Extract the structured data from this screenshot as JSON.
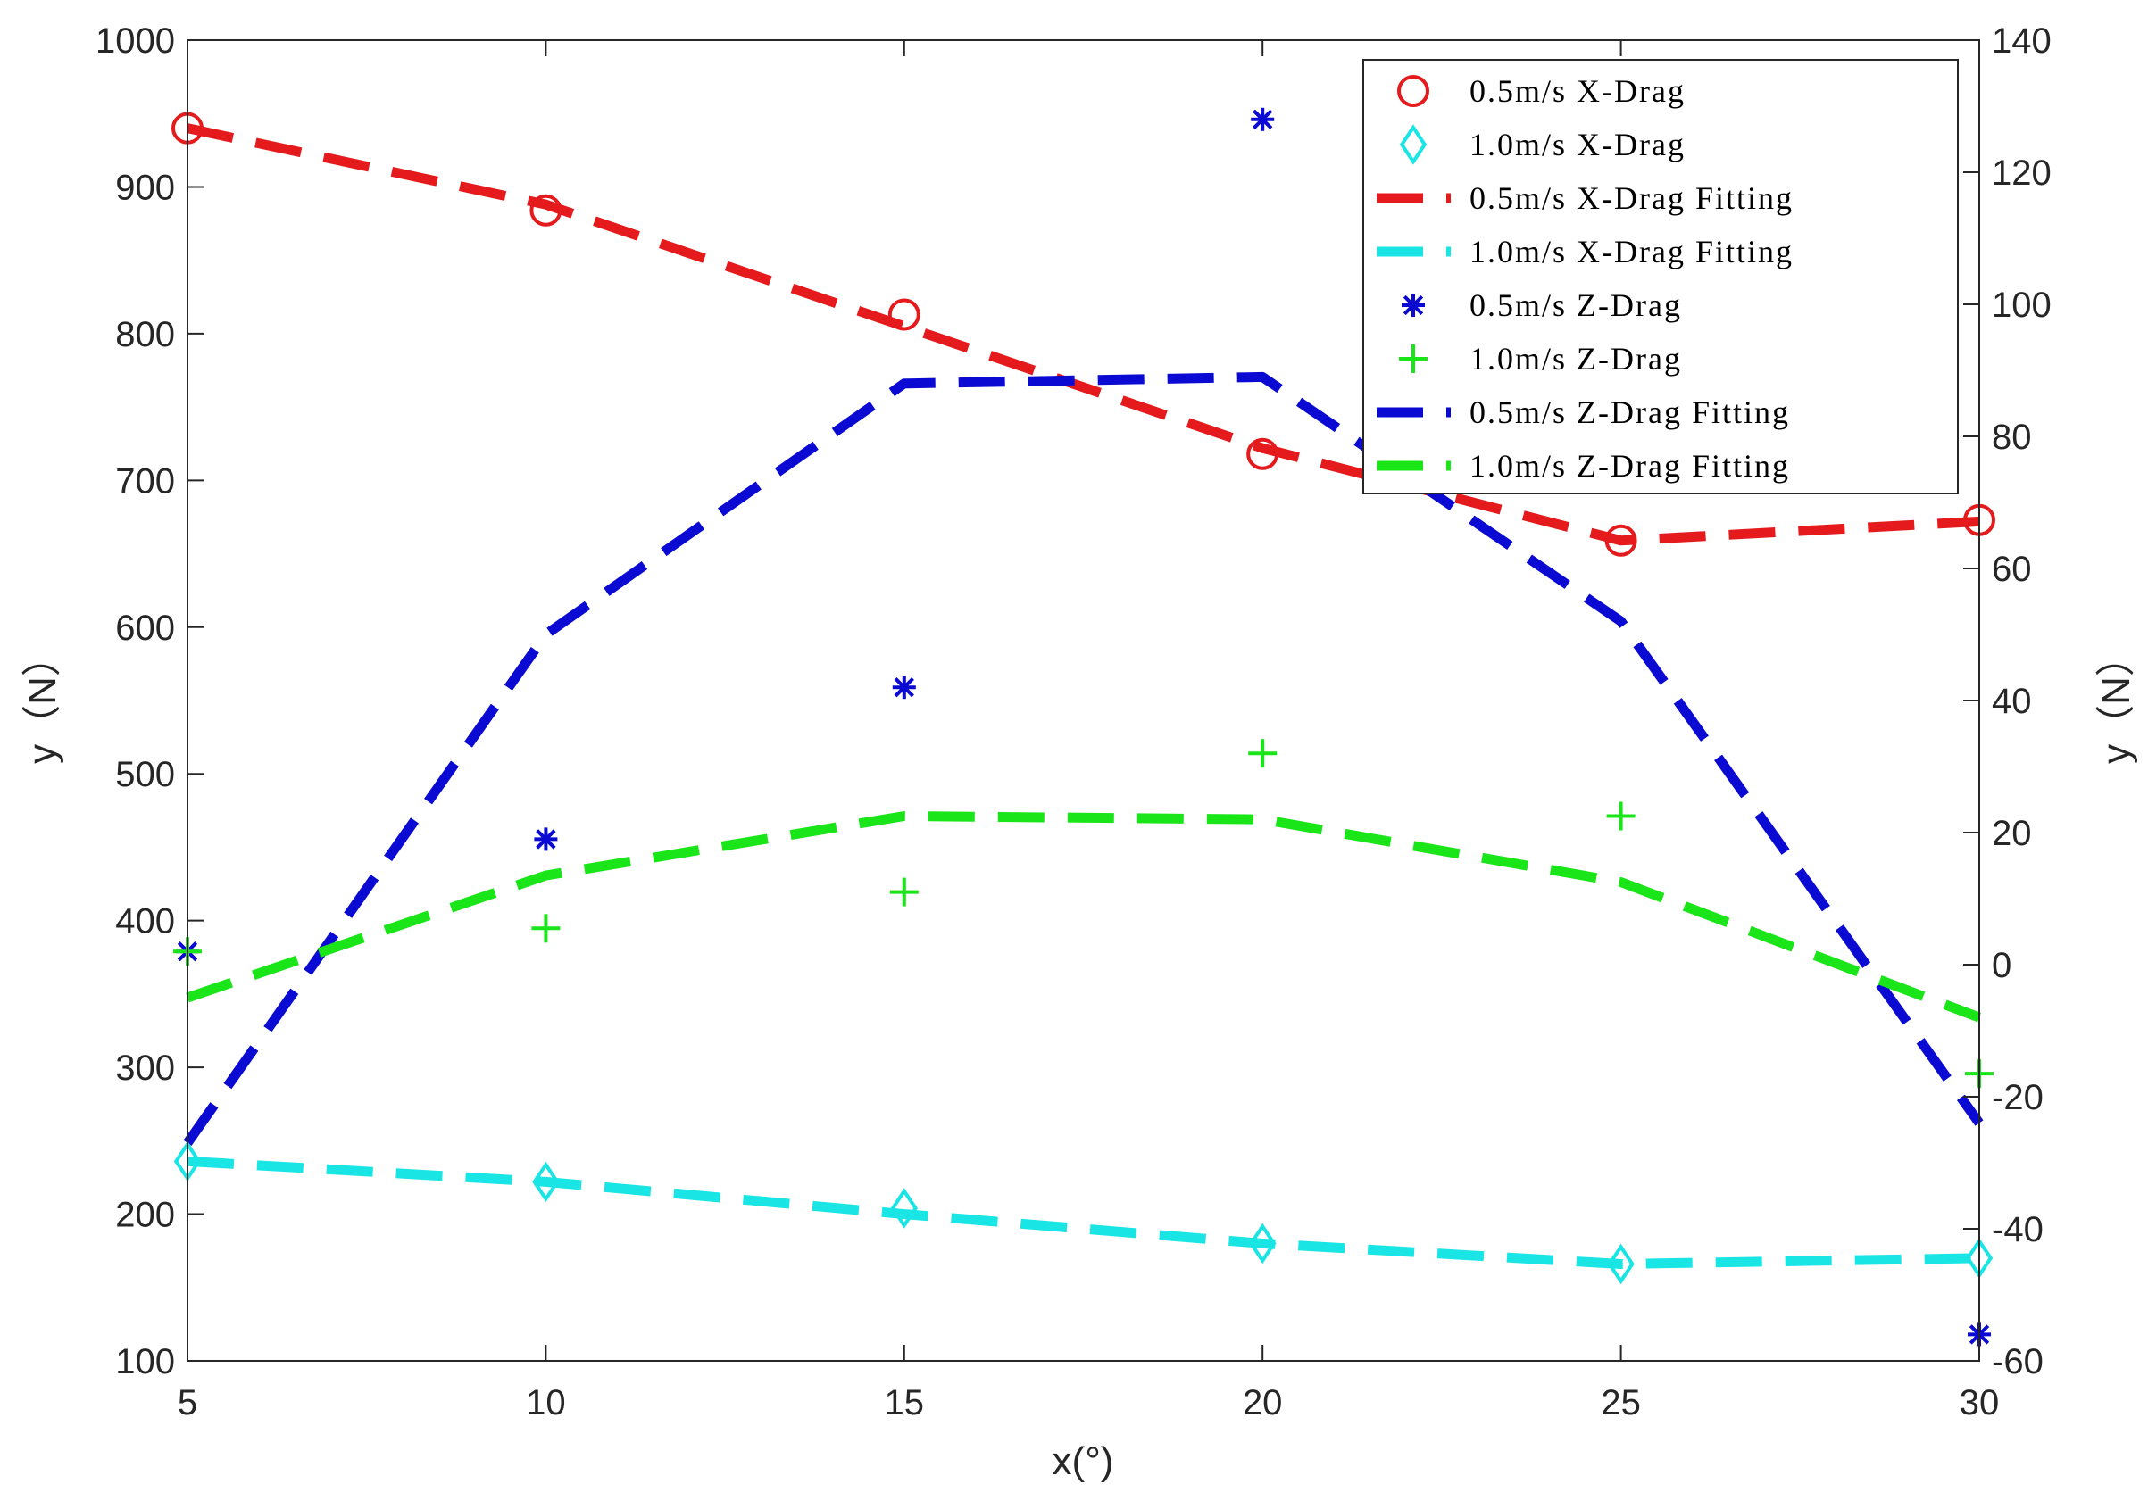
{
  "chart_data": {
    "type": "line",
    "title": "",
    "xlabel": "x(°)",
    "ylabel_left": "y（N）",
    "ylabel_right": "y（N）",
    "x": [
      5,
      10,
      15,
      20,
      25,
      30
    ],
    "xlim": [
      5,
      30
    ],
    "ylim_left": [
      100,
      1000
    ],
    "ylim_right": [
      -60,
      140
    ],
    "x_ticks": [
      5,
      10,
      15,
      20,
      25,
      30
    ],
    "y_ticks_left": [
      100,
      200,
      300,
      400,
      500,
      600,
      700,
      800,
      900,
      1000
    ],
    "y_ticks_right": [
      -60,
      -40,
      -20,
      0,
      20,
      40,
      60,
      80,
      100,
      120,
      140
    ],
    "grid": false,
    "legend_position": "top-right",
    "colors": {
      "red": "#e41a1c",
      "cyan": "#19e5e5",
      "blue": "#0a0ad2",
      "green": "#19e519",
      "axis": "#262626"
    },
    "series": [
      {
        "name": "0.5m/s X-Drag",
        "axis": "left",
        "kind": "marker",
        "marker": "circle",
        "color": "red",
        "values": [
          940,
          884,
          813,
          718,
          659,
          673
        ]
      },
      {
        "name": "1.0m/s X-Drag",
        "axis": "left",
        "kind": "marker",
        "marker": "diamond",
        "color": "cyan",
        "values": [
          236,
          222,
          204,
          180,
          166,
          170
        ]
      },
      {
        "name": "0.5m/s X-Drag Fitting",
        "axis": "left",
        "kind": "line",
        "color": "red",
        "values": [
          940,
          888,
          805,
          722,
          659,
          672
        ]
      },
      {
        "name": "1.0m/s X-Drag Fitting",
        "axis": "left",
        "kind": "line",
        "color": "cyan",
        "values": [
          236,
          222,
          200,
          180,
          166,
          170
        ]
      },
      {
        "name": "0.5m/s Z-Drag",
        "axis": "right",
        "kind": "marker",
        "marker": "asterisk",
        "color": "blue",
        "values": [
          2,
          19,
          42,
          128,
          null,
          -56
        ]
      },
      {
        "name": "1.0m/s Z-Drag",
        "axis": "right",
        "kind": "marker",
        "marker": "plus",
        "color": "green",
        "values": [
          2,
          5.5,
          11,
          32,
          22.5,
          -16.5
        ]
      },
      {
        "name": "0.5m/s Z-Drag Fitting",
        "axis": "right",
        "kind": "line",
        "color": "blue",
        "values": [
          -27,
          50,
          88,
          89,
          52,
          -24
        ]
      },
      {
        "name": "1.0m/s Z-Drag Fitting",
        "axis": "right",
        "kind": "line",
        "color": "green",
        "values": [
          -5,
          13.5,
          22.5,
          22,
          12.5,
          -8
        ]
      }
    ]
  }
}
